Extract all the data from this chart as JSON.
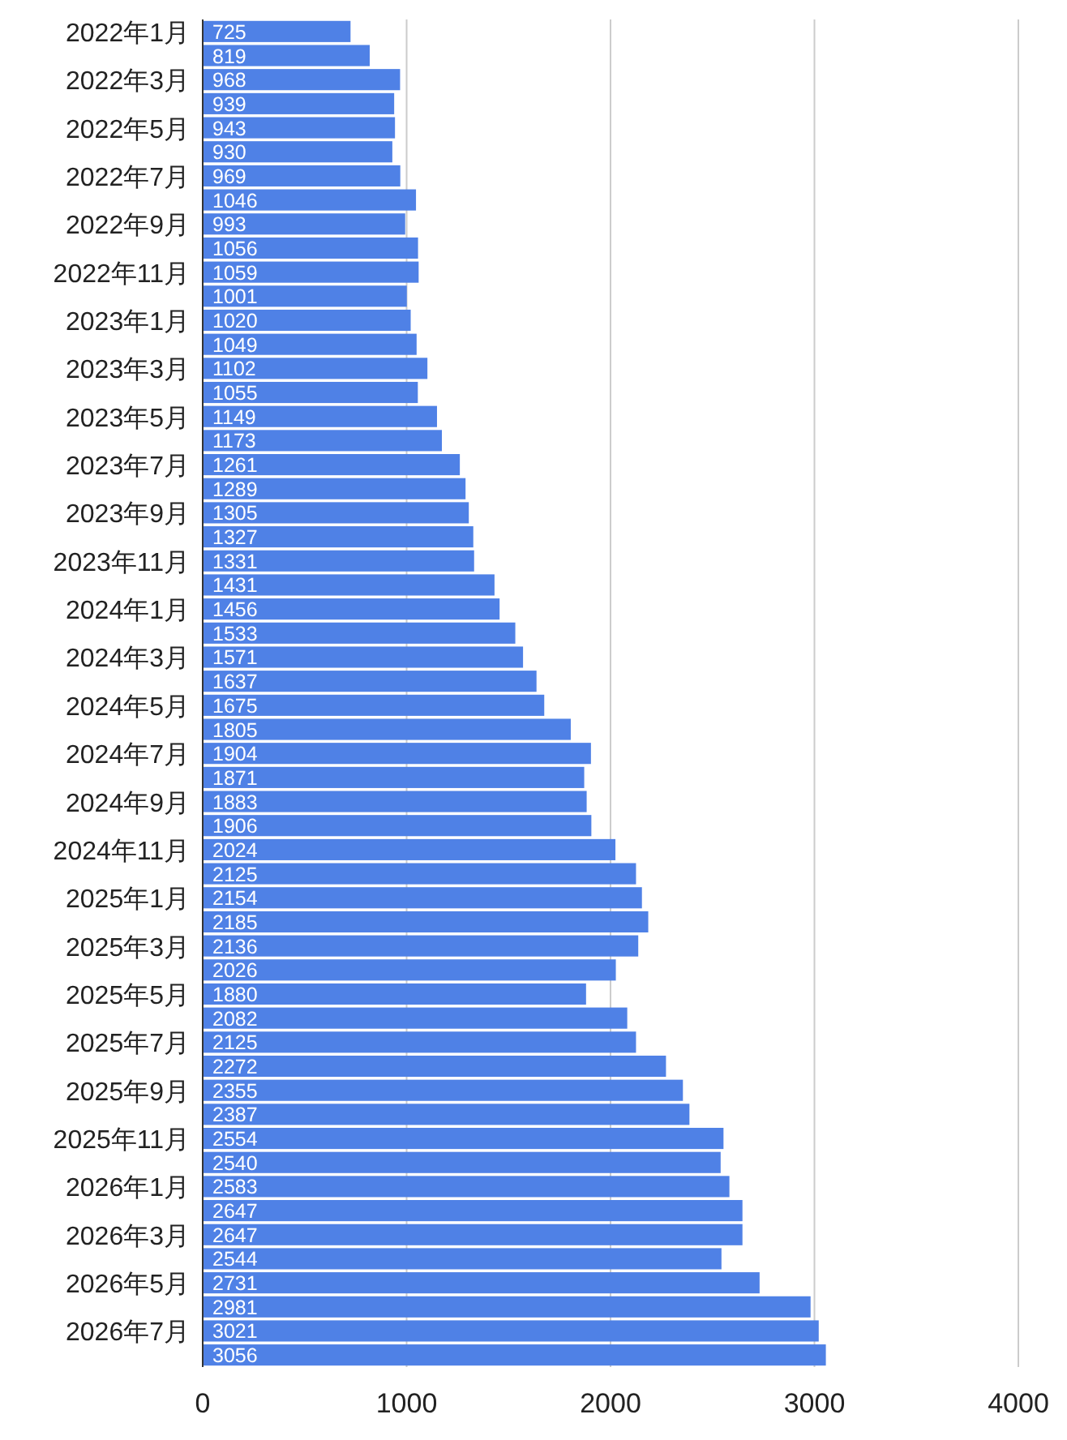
{
  "chart_data": {
    "type": "bar",
    "orientation": "horizontal",
    "categories": [
      "2022年1月",
      null,
      "2022年3月",
      null,
      "2022年5月",
      null,
      "2022年7月",
      null,
      "2022年9月",
      null,
      "2022年11月",
      null,
      "2023年1月",
      null,
      "2023年3月",
      null,
      "2023年5月",
      null,
      "2023年7月",
      null,
      "2023年9月",
      null,
      "2023年11月",
      null,
      "2024年1月",
      null,
      "2024年3月",
      null,
      "2024年5月",
      null,
      "2024年7月",
      null,
      "2024年9月",
      null,
      "2024年11月",
      null,
      "2025年1月",
      null,
      "2025年3月",
      null,
      "2025年5月",
      null,
      "2025年7月",
      null,
      "2025年9月",
      null,
      "2025年11月",
      null,
      "2026年1月",
      null,
      "2026年3月",
      null,
      "2026年5月",
      null,
      "2026年7月",
      null
    ],
    "values": [
      725,
      819,
      968,
      939,
      943,
      930,
      969,
      1046,
      993,
      1056,
      1059,
      1001,
      1020,
      1049,
      1102,
      1055,
      1149,
      1173,
      1261,
      1289,
      1305,
      1327,
      1331,
      1431,
      1456,
      1533,
      1571,
      1637,
      1675,
      1805,
      1904,
      1871,
      1883,
      1906,
      2024,
      2125,
      2154,
      2185,
      2136,
      2026,
      1880,
      2082,
      2125,
      2272,
      2355,
      2387,
      2554,
      2540,
      2583,
      2647,
      2647,
      2544,
      2731,
      2981,
      3021,
      3056
    ],
    "color": "#4f81e6",
    "xlim": [
      0,
      4000
    ],
    "xticks": [
      0,
      1000,
      2000,
      3000,
      4000
    ],
    "grid": "x",
    "data_labels": true
  }
}
